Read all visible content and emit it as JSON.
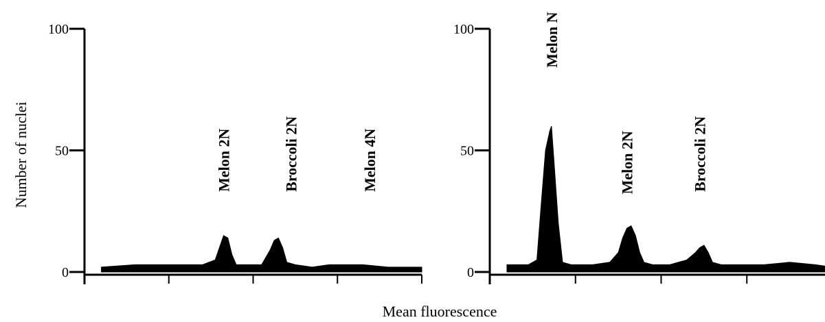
{
  "figure": {
    "xlabel": "Mean fluorescence",
    "ylabel": "Number of nuclei"
  },
  "chart_data": [
    {
      "type": "area",
      "ylim": [
        0,
        100
      ],
      "yticks": [
        "0",
        "50",
        "100"
      ],
      "xlim": [
        0,
        4
      ],
      "xticks": [
        0,
        1,
        2,
        3,
        4
      ],
      "grid": false,
      "baseline_level": 2,
      "series": [
        {
          "x": [
            0.2,
            0.6,
            1.0,
            1.4,
            1.55,
            1.6,
            1.65,
            1.7,
            1.75,
            1.8,
            1.9,
            2.0,
            2.1,
            2.15,
            2.2,
            2.25,
            2.3,
            2.35,
            2.4,
            2.5,
            2.7,
            2.9,
            3.1,
            3.3,
            3.6,
            4.0
          ],
          "values": [
            2,
            3,
            3,
            3,
            5,
            10,
            15,
            14,
            7,
            3,
            3,
            3,
            3,
            6,
            9,
            13,
            14,
            10,
            4,
            3,
            2,
            3,
            3,
            3,
            2,
            2
          ]
        }
      ],
      "annotations": [
        {
          "text": "Melon  2N",
          "x": 1.65,
          "y": 33
        },
        {
          "text": "Broccoli  2N",
          "x": 2.45,
          "y": 33
        },
        {
          "text": "Melon  4N",
          "x": 3.38,
          "y": 33
        }
      ]
    },
    {
      "type": "area",
      "ylim": [
        0,
        100
      ],
      "yticks": [
        "0",
        "50",
        "100"
      ],
      "xlim": [
        0,
        4
      ],
      "xticks": [
        0,
        1,
        2,
        3,
        4
      ],
      "grid": false,
      "baseline_level": 2,
      "series": [
        {
          "x": [
            0.2,
            0.45,
            0.55,
            0.6,
            0.65,
            0.7,
            0.72,
            0.75,
            0.8,
            0.85,
            0.95,
            1.2,
            1.4,
            1.5,
            1.55,
            1.6,
            1.65,
            1.7,
            1.75,
            1.8,
            1.9,
            2.1,
            2.3,
            2.4,
            2.45,
            2.5,
            2.55,
            2.6,
            2.7,
            2.9,
            3.2,
            3.5,
            3.8,
            4.0
          ],
          "values": [
            3,
            3,
            5,
            28,
            50,
            58,
            60,
            45,
            20,
            4,
            3,
            3,
            4,
            8,
            14,
            18,
            19,
            15,
            8,
            4,
            3,
            3,
            5,
            8,
            10,
            11,
            8,
            4,
            3,
            3,
            3,
            4,
            3,
            2
          ]
        }
      ],
      "annotations": [
        {
          "text": "Melon  N",
          "x": 0.72,
          "y": 84
        },
        {
          "text": "Melon  2N",
          "x": 1.6,
          "y": 32
        },
        {
          "text": "Broccoli  2N",
          "x": 2.45,
          "y": 33
        }
      ]
    }
  ]
}
